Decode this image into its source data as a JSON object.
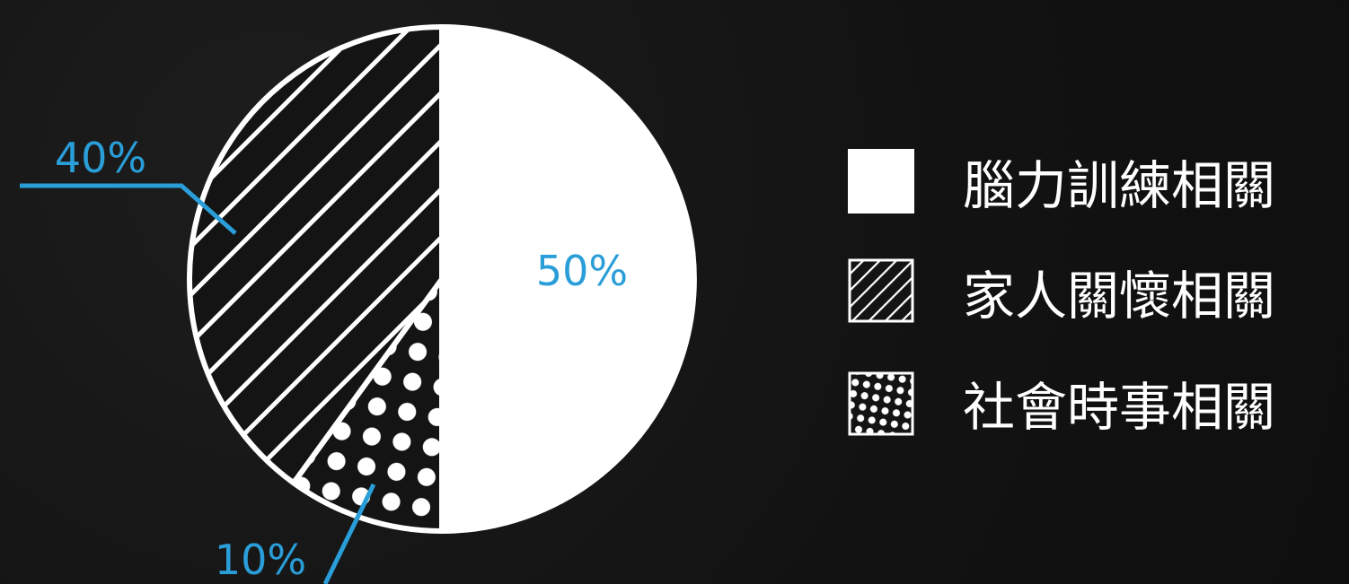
{
  "chart_data": {
    "type": "pie",
    "slices": [
      {
        "label": "腦力訓練相關",
        "value": 50,
        "pattern": "solid",
        "value_label": "50%"
      },
      {
        "label": "社會時事相關",
        "value": 10,
        "pattern": "dots",
        "value_label": "10%"
      },
      {
        "label": "家人關懷相關",
        "value": 40,
        "pattern": "stripes",
        "value_label": "40%"
      }
    ],
    "legend_position": "right",
    "legend": [
      {
        "label": "腦力訓練相關",
        "pattern": "solid"
      },
      {
        "label": "家人關懷相關",
        "pattern": "stripes"
      },
      {
        "label": "社會時事相關",
        "pattern": "dots"
      }
    ]
  },
  "colors": {
    "background": "#141414",
    "slice_fill": "#ffffff",
    "slice_stroke": "#ffffff",
    "pattern_background": "#141414",
    "label_color": "#2a9ed8"
  }
}
